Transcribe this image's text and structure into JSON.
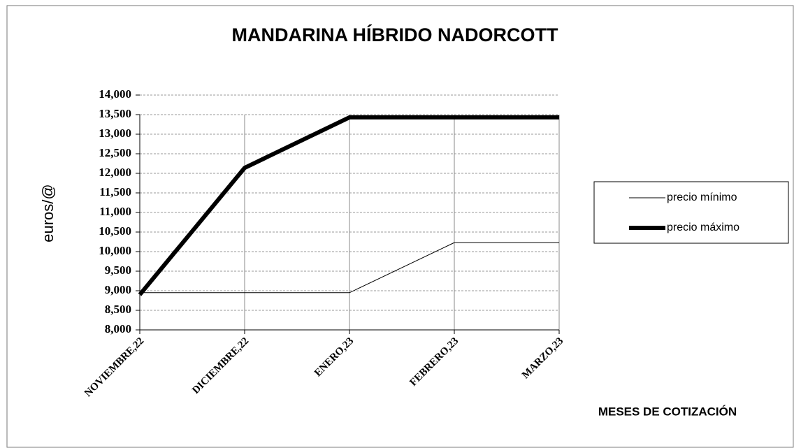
{
  "chart_data": {
    "type": "line",
    "title": "MANDARINA HÍBRIDO NADORCOTT",
    "x_label": "MESES DE COTIZACIÓN",
    "y_label": "euros/@",
    "categories": [
      "NOVIEMBRE,22",
      "DICIEMBRE,22",
      "ENERO,23",
      "FEBRERO,23",
      "MARZO,23"
    ],
    "series": [
      {
        "name": "precio mínimo",
        "color": "#000000",
        "width": 1,
        "values": [
          8.95,
          8.95,
          8.95,
          10.23,
          10.23
        ]
      },
      {
        "name": "precio máximo",
        "color": "#000000",
        "width": 6,
        "values": [
          8.9,
          12.14,
          13.43,
          13.43,
          13.43
        ]
      }
    ],
    "ylim": [
      8,
      14
    ],
    "yticks": [
      {
        "value": 8,
        "label": "8,000"
      },
      {
        "value": 8.5,
        "label": "8,500"
      },
      {
        "value": 9,
        "label": "9,000"
      },
      {
        "value": 9.5,
        "label": "9,500"
      },
      {
        "value": 10,
        "label": "10,000"
      },
      {
        "value": 10.5,
        "label": "10,500"
      },
      {
        "value": 11,
        "label": "11,000"
      },
      {
        "value": 11.5,
        "label": "11,500"
      },
      {
        "value": 12,
        "label": "12,000"
      },
      {
        "value": 12.5,
        "label": "12,500"
      },
      {
        "value": 13,
        "label": "13,000"
      },
      {
        "value": 13.5,
        "label": "13,500"
      },
      {
        "value": 14,
        "label": "14,000"
      }
    ],
    "grid": true,
    "legend": "right"
  }
}
